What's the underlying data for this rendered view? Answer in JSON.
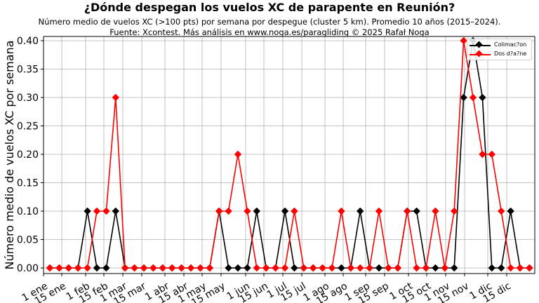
{
  "title": "¿Dónde despegan los vuelos XC de parapente en Reunión?",
  "subtitle_line1": "Número medio de vuelos XC (>100 pts) por semana por despegue (cluster 5 km). Promedio 10 años (2015–2024).",
  "subtitle_line2": "Fuente: Xcontest. Más análisis en www.noga.es/paragliding © 2025 Rafał Noga",
  "legend": [
    {
      "label": "Colimac?on",
      "color": "#000000"
    },
    {
      "label": "Dos d?a?ne",
      "color": "#ff0000"
    }
  ],
  "chart_data": {
    "type": "line",
    "title": "¿Dónde despegan los vuelos XC de parapente en Reunión?",
    "xlabel": "",
    "ylabel": "Número medio de vuelos XC por semana",
    "ylim": [
      0,
      0.4
    ],
    "yticks": [
      "0.00",
      "0.05",
      "0.10",
      "0.15",
      "0.20",
      "0.25",
      "0.30",
      "0.35",
      "0.40"
    ],
    "xtick_labels": [
      "1 ene",
      "15 ene",
      "1 feb",
      "15 feb",
      "1 mar",
      "15 mar",
      "1 abr",
      "15 abr",
      "1 may",
      "15 may",
      "1 jun",
      "15 jun",
      "1 jul",
      "15 jul",
      "1 ago",
      "15 ago",
      "1 sep",
      "15 sep",
      "1 oct",
      "15 oct",
      "1 nov",
      "15 nov",
      "1 dic",
      "15 dic"
    ],
    "grid": true,
    "legend_position": "upper right",
    "x": [
      1,
      2,
      3,
      4,
      5,
      6,
      7,
      8,
      9,
      10,
      11,
      12,
      13,
      14,
      15,
      16,
      17,
      18,
      19,
      20,
      21,
      22,
      23,
      24,
      25,
      26,
      27,
      28,
      29,
      30,
      31,
      32,
      33,
      34,
      35,
      36,
      37,
      38,
      39,
      40,
      41,
      42,
      43,
      44,
      45,
      46,
      47,
      48,
      49,
      50,
      51,
      52
    ],
    "x_unit": "week of year",
    "series": [
      {
        "name": "Colimac?on",
        "color": "#000000",
        "marker": "diamond",
        "values": [
          0,
          0,
          0,
          0,
          0.1,
          0,
          0,
          0.1,
          0,
          0,
          0,
          0,
          0,
          0,
          0,
          0,
          0,
          0,
          0.1,
          0,
          0,
          0,
          0.1,
          0,
          0,
          0.1,
          0,
          0,
          0,
          0,
          0,
          0,
          0,
          0.1,
          0,
          0,
          0,
          0,
          0.1,
          0.1,
          0,
          0,
          0,
          0,
          0.3,
          0.4,
          0.3,
          0,
          0,
          0.1,
          0,
          0
        ]
      },
      {
        "name": "Dos d?a?ne",
        "color": "#ff0000",
        "marker": "diamond",
        "values": [
          0,
          0,
          0,
          0,
          0,
          0.1,
          0.1,
          0.3,
          0,
          0,
          0,
          0,
          0,
          0,
          0,
          0,
          0,
          0,
          0.1,
          0.1,
          0.2,
          0.1,
          0,
          0,
          0,
          0,
          0.1,
          0,
          0,
          0,
          0,
          0.1,
          0,
          0,
          0,
          0.1,
          0,
          0,
          0.1,
          0,
          0,
          0.1,
          0,
          0.1,
          0.4,
          0.3,
          0.2,
          0.2,
          0.1,
          0,
          0,
          0
        ]
      }
    ]
  }
}
